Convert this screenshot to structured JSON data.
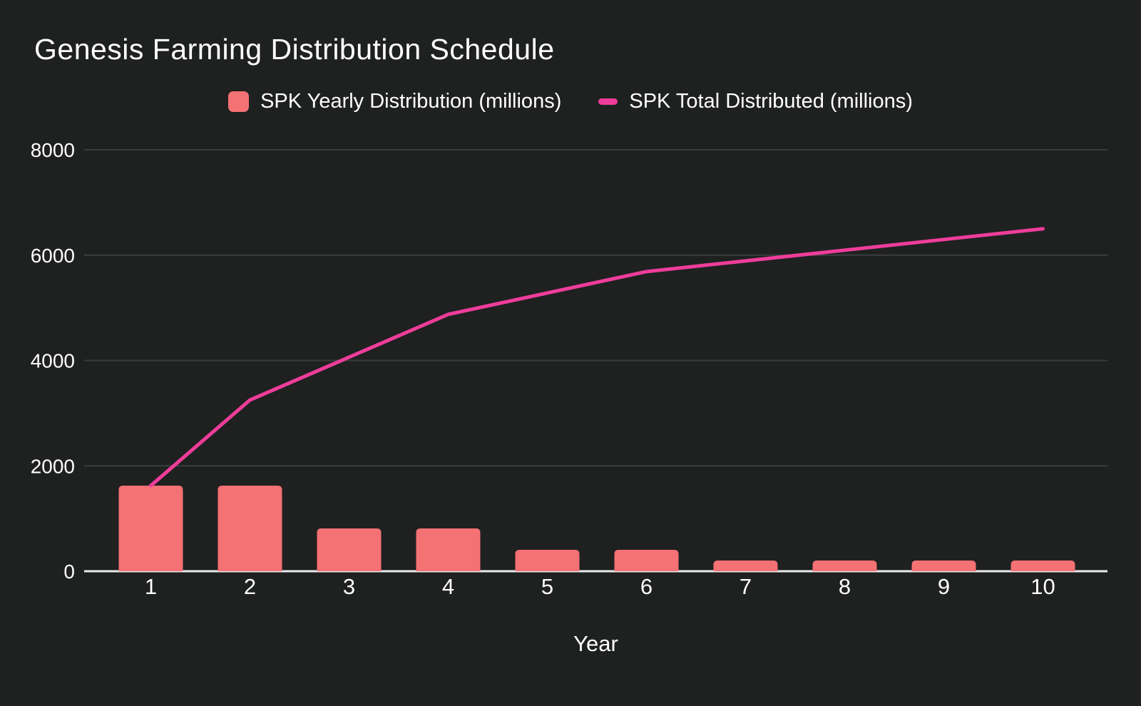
{
  "title": "Genesis Farming Distribution Schedule",
  "colors": {
    "background": "#1f2020",
    "bar": "#f47174",
    "line": "#ee3d9a",
    "grid": "#3b3d3d",
    "axis_baseline": "#e8eaed",
    "text": "#ffffff"
  },
  "legend": {
    "items": [
      {
        "label": "SPK Yearly Distribution (millions)",
        "marker": "square-icon",
        "color": "#f47174"
      },
      {
        "label": "SPK Total Distributed (millions)",
        "marker": "dash-icon",
        "color": "#ee3d9a"
      }
    ]
  },
  "x_axis": {
    "label": "Year"
  },
  "chart_data": {
    "type": "bar",
    "title": "Genesis Farming Distribution Schedule",
    "categories": [
      "1",
      "2",
      "3",
      "4",
      "5",
      "6",
      "7",
      "8",
      "9",
      "10"
    ],
    "series": [
      {
        "name": "SPK Yearly Distribution (millions)",
        "type": "bar",
        "color": "#f47174",
        "values": [
          1625,
          1625,
          812.5,
          812.5,
          406.25,
          406.25,
          203.125,
          203.125,
          203.125,
          203.125
        ]
      },
      {
        "name": "SPK Total Distributed (millions)",
        "type": "line",
        "color": "#ee3d9a",
        "values": [
          1625,
          3250,
          4062.5,
          4875,
          5281.25,
          5687.5,
          5890.625,
          6093.75,
          6296.875,
          6500
        ]
      }
    ],
    "xlabel": "Year",
    "ylabel": "",
    "ylim": [
      0,
      8000
    ],
    "yticks": [
      0,
      2000,
      4000,
      6000,
      8000
    ],
    "grid": true,
    "legend_position": "top"
  }
}
